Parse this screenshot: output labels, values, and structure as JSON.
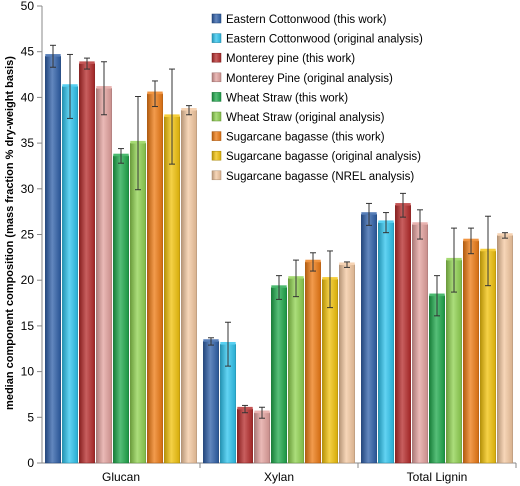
{
  "chart_data": {
    "type": "bar",
    "categories": [
      "Glucan",
      "Xylan",
      "Total Lignin"
    ],
    "ylabel": "median component composition (mass fraction % dry-weight basis)",
    "xlabel": "",
    "ylim": [
      0,
      50
    ],
    "yticks": [
      0,
      5,
      10,
      15,
      20,
      25,
      30,
      35,
      40,
      45,
      50
    ],
    "grid": false,
    "legend_position": "top-right",
    "series": [
      {
        "name": "Eastern Cottonwood (this work)",
        "color": "#2e5fa8",
        "values": [
          44.5,
          13.3,
          27.2
        ],
        "err": [
          1.2,
          0.4,
          1.2
        ]
      },
      {
        "name": "Eastern Cottonwood (original analysis)",
        "color": "#2ec4ee",
        "values": [
          41.2,
          13.0,
          26.3
        ],
        "err": [
          3.5,
          2.4,
          1.1
        ]
      },
      {
        "name": "Monterey pine (this work)",
        "color": "#b52a2a",
        "values": [
          43.7,
          5.9,
          28.2
        ],
        "err": [
          0.6,
          0.4,
          1.3
        ]
      },
      {
        "name": "Monterey Pine (original analysis)",
        "color": "#e3a19e",
        "values": [
          41.0,
          5.5,
          26.1
        ],
        "err": [
          2.9,
          0.6,
          1.6
        ]
      },
      {
        "name": "Wheat Straw (this work)",
        "color": "#1ea84b",
        "values": [
          33.6,
          19.2,
          18.3
        ],
        "err": [
          0.8,
          1.3,
          2.2
        ]
      },
      {
        "name": "Wheat Straw (original analysis)",
        "color": "#8fd14f",
        "values": [
          35.0,
          20.2,
          22.2
        ],
        "err": [
          5.1,
          2.0,
          3.5
        ]
      },
      {
        "name": "Sugarcane bagasse (this work)",
        "color": "#ee7a12",
        "values": [
          40.4,
          22.0,
          24.3
        ],
        "err": [
          1.4,
          1.0,
          1.4
        ]
      },
      {
        "name": "Sugarcane bagasse (original analysis)",
        "color": "#f2c20a",
        "values": [
          37.9,
          20.1,
          23.2
        ],
        "err": [
          5.2,
          3.1,
          3.8
        ]
      },
      {
        "name": "Sugarcane bagasse (NREL analysis)",
        "color": "#f4c8a0",
        "values": [
          38.6,
          21.7,
          24.9
        ],
        "err": [
          0.5,
          0.3,
          0.3
        ]
      }
    ]
  }
}
